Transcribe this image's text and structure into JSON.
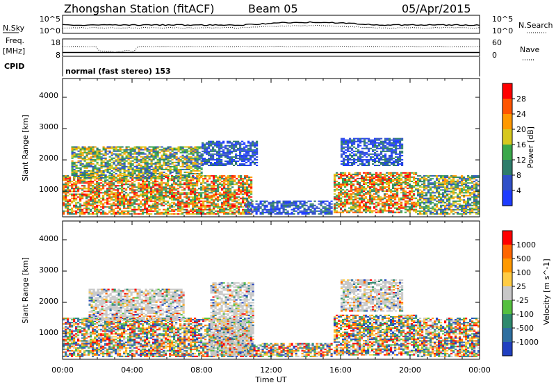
{
  "header": {
    "station": "Zhongshan Station (fitACF)",
    "beam": "Beam 05",
    "date": "05/Apr/2015"
  },
  "noise_panel": {
    "left_label": "N.Sky",
    "left_ticks": [
      "10^5",
      "10^0"
    ],
    "right_label": "N.Search",
    "right_ticks": [
      "10^5",
      "10^0"
    ]
  },
  "freq_panel": {
    "left_label_1": "Freq.",
    "left_label_2": "[MHz]",
    "left_ticks": [
      "18",
      "8"
    ],
    "right_label": "Nave",
    "right_ticks": [
      "60",
      "0"
    ]
  },
  "cpid_panel": {
    "label": "CPID",
    "text": "normal (fast stereo) 153"
  },
  "x_axis": {
    "label": "Time UT",
    "ticks": [
      "00:00",
      "04:00",
      "08:00",
      "12:00",
      "16:00",
      "20:00",
      "00:00"
    ]
  },
  "chart_data": [
    {
      "type": "heatmap",
      "parameter": "Power",
      "colorbar_label": "Power [dB]",
      "ylabel": "Slant Range [km]",
      "yticks": [
        "1000",
        "2000",
        "3000",
        "4000"
      ],
      "ylim": [
        180,
        4600
      ],
      "xlim_hours": [
        0,
        24
      ],
      "colorbar_ticks": [
        "4",
        "8",
        "12",
        "16",
        "20",
        "24",
        "28"
      ],
      "colors": [
        "#1e3cff",
        "#3050c8",
        "#2e7d6b",
        "#3aa84a",
        "#d7c81e",
        "#ff9900",
        "#ff5500",
        "#ff0000"
      ],
      "regions": [
        {
          "t0": 0.0,
          "t1": 10.9,
          "r0": 250,
          "r1": 1500,
          "level": "high"
        },
        {
          "t0": 0.5,
          "t1": 8.0,
          "r0": 1400,
          "r1": 2400,
          "level": "mid"
        },
        {
          "t0": 8.0,
          "t1": 11.2,
          "r0": 1800,
          "r1": 2600,
          "level": "low"
        },
        {
          "t0": 10.5,
          "t1": 15.5,
          "r0": 250,
          "r1": 700,
          "level": "low"
        },
        {
          "t0": 15.6,
          "t1": 20.4,
          "r0": 300,
          "r1": 1600,
          "level": "high"
        },
        {
          "t0": 16.0,
          "t1": 19.5,
          "r0": 1800,
          "r1": 2700,
          "level": "low"
        },
        {
          "t0": 20.4,
          "t1": 24.0,
          "r0": 250,
          "r1": 1500,
          "level": "mid"
        }
      ]
    },
    {
      "type": "heatmap",
      "parameter": "Velocity",
      "colorbar_label": "Velocity [m s^-1]",
      "ylabel": "Slant Range [km]",
      "yticks": [
        "1000",
        "2000",
        "3000",
        "4000"
      ],
      "ylim": [
        180,
        4600
      ],
      "xlim_hours": [
        0,
        24
      ],
      "colorbar_ticks": [
        "1000",
        "500",
        "100",
        "25",
        "-25",
        "-100",
        "-500",
        "-1000"
      ],
      "colors": [
        "#2040c0",
        "#2e6fa0",
        "#2e8a6e",
        "#55c040",
        "#c8c8c8",
        "#ffcc44",
        "#ff9900",
        "#ff6600",
        "#ff0000"
      ],
      "regions": [
        {
          "t0": 0.0,
          "t1": 10.9,
          "r0": 250,
          "r1": 1500,
          "level": "mixed"
        },
        {
          "t0": 1.5,
          "t1": 7.0,
          "r0": 1400,
          "r1": 2400,
          "level": "grey"
        },
        {
          "t0": 8.5,
          "t1": 11.0,
          "r0": 300,
          "r1": 2600,
          "level": "grey"
        },
        {
          "t0": 10.5,
          "t1": 15.5,
          "r0": 250,
          "r1": 700,
          "level": "mixed"
        },
        {
          "t0": 15.6,
          "t1": 20.4,
          "r0": 300,
          "r1": 1600,
          "level": "mixed"
        },
        {
          "t0": 16.0,
          "t1": 19.5,
          "r0": 1700,
          "r1": 2700,
          "level": "grey"
        },
        {
          "t0": 20.4,
          "t1": 24.0,
          "r0": 250,
          "r1": 1500,
          "level": "mixed"
        }
      ]
    }
  ]
}
